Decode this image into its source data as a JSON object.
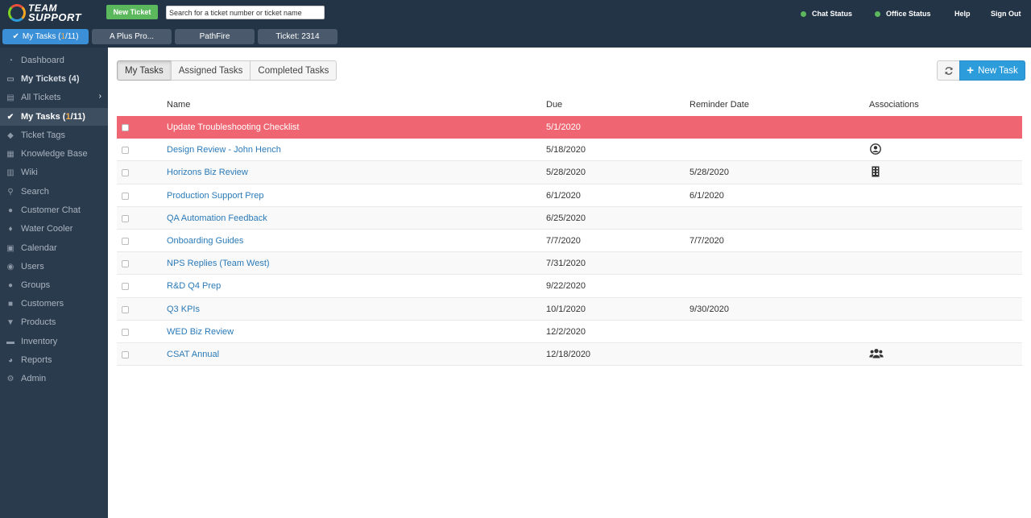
{
  "logo": {
    "line1": "TEAM",
    "line2": "SUPPORT"
  },
  "header": {
    "new_ticket_label": "New Ticket",
    "search_placeholder": "Search for a ticket number or ticket name",
    "chat_status": "Chat Status",
    "office_status": "Office Status",
    "help": "Help",
    "sign_out": "Sign Out",
    "status_color": "#5cb85c"
  },
  "open_tabs": [
    {
      "label_prefix": "My Tasks (",
      "label_highlight": "1",
      "label_suffix": "/11)",
      "active": true,
      "icon": "check-icon"
    },
    {
      "label": "A Plus Pro..."
    },
    {
      "label": "PathFire"
    },
    {
      "label": "Ticket: 2314"
    }
  ],
  "sidebar": {
    "items": [
      {
        "label": "Dashboard",
        "icon": "dashboard-icon"
      },
      {
        "label": "My Tickets (4)",
        "icon": "ticket-icon"
      },
      {
        "label": "All Tickets",
        "icon": "tickets-icon"
      },
      {
        "label_prefix": "My Tasks (",
        "label_highlight": "1",
        "label_suffix": "/11)",
        "icon": "check-icon"
      },
      {
        "label": "Ticket Tags",
        "icon": "tag-icon"
      },
      {
        "label": "Knowledge Base",
        "icon": "cubes-icon"
      },
      {
        "label": "Wiki",
        "icon": "book-icon"
      },
      {
        "label": "Search",
        "icon": "search-icon"
      },
      {
        "label": "Customer Chat",
        "icon": "chat-icon"
      },
      {
        "label": "Water Cooler",
        "icon": "water-drop-icon"
      },
      {
        "label": "Calendar",
        "icon": "calendar-icon"
      },
      {
        "label": "Users",
        "icon": "user-icon"
      },
      {
        "label": "Groups",
        "icon": "group-icon"
      },
      {
        "label": "Customers",
        "icon": "briefcase-icon"
      },
      {
        "label": "Products",
        "icon": "cart-icon"
      },
      {
        "label": "Inventory",
        "icon": "truck-icon"
      },
      {
        "label": "Reports",
        "icon": "pie-chart-icon"
      },
      {
        "label": "Admin",
        "icon": "gear-icon"
      }
    ]
  },
  "main": {
    "tabs": [
      {
        "label": "My Tasks",
        "active": true
      },
      {
        "label": "Assigned Tasks"
      },
      {
        "label": "Completed Tasks"
      }
    ],
    "new_task_label": "New Task",
    "columns": [
      "Name",
      "Due",
      "Reminder Date",
      "Associations"
    ],
    "tasks": [
      {
        "name": "Update Troubleshooting Checklist",
        "due": "5/1/2020",
        "reminder": "",
        "assoc": "",
        "overdue": true
      },
      {
        "name": "Design Review - John Hench",
        "due": "5/18/2020",
        "reminder": "",
        "assoc": "user-circle-icon"
      },
      {
        "name": "Horizons Biz Review",
        "due": "5/28/2020",
        "reminder": "5/28/2020",
        "assoc": "building-icon"
      },
      {
        "name": "Production Support Prep",
        "due": "6/1/2020",
        "reminder": "6/1/2020",
        "assoc": ""
      },
      {
        "name": "QA Automation Feedback",
        "due": "6/25/2020",
        "reminder": "",
        "assoc": ""
      },
      {
        "name": "Onboarding Guides",
        "due": "7/7/2020",
        "reminder": "7/7/2020",
        "assoc": ""
      },
      {
        "name": "NPS Replies (Team West)",
        "due": "7/31/2020",
        "reminder": "",
        "assoc": ""
      },
      {
        "name": "R&D Q4 Prep",
        "due": "9/22/2020",
        "reminder": "",
        "assoc": ""
      },
      {
        "name": "Q3 KPIs",
        "due": "10/1/2020",
        "reminder": "9/30/2020",
        "assoc": ""
      },
      {
        "name": "WED Biz Review",
        "due": "12/2/2020",
        "reminder": "",
        "assoc": ""
      },
      {
        "name": "CSAT Annual",
        "due": "12/18/2020",
        "reminder": "",
        "assoc": "group-icon"
      }
    ]
  },
  "colors": {
    "accent": "#2d9cdb",
    "overdue_row": "#ef6672",
    "sidebar": "#2b3b4e",
    "topbar": "#243447",
    "new_ticket": "#5cb85c",
    "link": "#2a7ab8"
  }
}
